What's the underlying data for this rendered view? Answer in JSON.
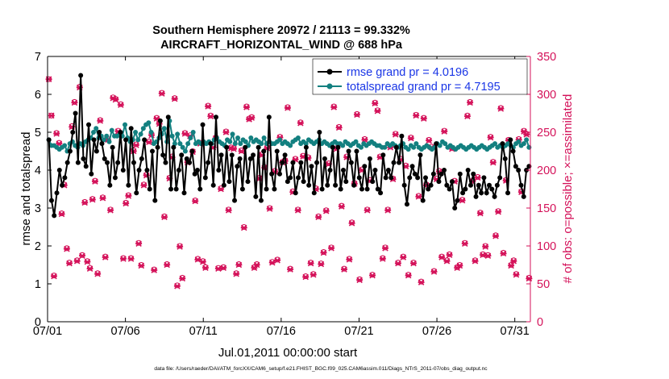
{
  "chart_data": {
    "type": "line",
    "title": "Southern Hemisphere 20972 / 21113 = 99.332%",
    "subtitle": "AIRCRAFT_HORIZONTAL_WIND @ 688 hPa",
    "xlabel": "Jul.01,2011 00:00:00 start",
    "ylabel_left": "rmse and totalspread",
    "ylabel_right": "# of obs: o=possible; ×=assimilated",
    "footnote": "data file: /Users/raeder/DAI/ATM_forcXX/CAM6_setup/f.e21.FHIST_BGC.f09_025.CAM6assim.011/Diags_NTrS_2011-07/obs_diag_output.nc",
    "x_ticks": [
      "07/01",
      "07/06",
      "07/11",
      "07/16",
      "07/21",
      "07/26",
      "07/31"
    ],
    "x_tick_days": [
      1,
      6,
      11,
      16,
      21,
      26,
      31
    ],
    "xlim_days": [
      1,
      32
    ],
    "ylim_left": [
      0,
      7
    ],
    "ylim_right": [
      0,
      350
    ],
    "y_ticks_left": [
      "0",
      "1",
      "2",
      "3",
      "4",
      "5",
      "6",
      "7"
    ],
    "y_ticks_right": [
      "0",
      "50",
      "100",
      "150",
      "200",
      "250",
      "300",
      "350"
    ],
    "left_color": "#000000",
    "totalspread_color": "#138080",
    "right_color": "#d41159",
    "legend_text_color": "#1a36e6",
    "legend_position": "top-right",
    "legend": [
      "rmse grand pr = 4.0196",
      "totalspread grand pr = 4.7195"
    ],
    "series": [
      {
        "name": "rmse",
        "values": [
          4.8,
          3.2,
          2.8,
          3.4,
          4.0,
          3.6,
          3.8,
          4.2,
          4.5,
          5.0,
          5.5,
          4.2,
          6.5,
          4.3,
          4.1,
          5.2,
          3.9,
          4.8,
          4.5,
          5.0,
          4.7,
          4.3,
          4.2,
          3.6,
          4.6,
          3.8,
          4.2,
          5.0,
          4.0,
          4.8,
          3.6,
          5.1,
          4.2,
          3.4,
          4.0,
          4.3,
          4.8,
          4.0,
          3.5,
          4.5,
          3.2,
          4.6,
          5.3,
          4.4,
          4.2,
          5.4,
          3.5,
          4.6,
          3.5,
          4.0,
          4.4,
          3.4,
          4.3,
          4.2,
          4.5,
          3.9,
          4.0,
          3.5,
          5.2,
          3.8,
          4.2,
          4.7,
          3.6,
          5.4,
          4.0,
          4.4,
          3.6,
          4.6,
          3.7,
          4.4,
          3.2,
          4.1,
          4.3,
          3.5,
          4.6,
          3.7,
          4.3,
          4.4,
          3.3,
          4.6,
          3.2,
          4.5,
          3.5,
          5.4,
          3.9,
          3.5,
          4.5,
          3.9,
          4.2,
          4.4,
          3.7,
          3.8,
          4.2,
          3.4,
          3.8,
          4.2,
          3.7,
          4.6,
          3.6,
          4.1,
          3.4,
          4.2,
          5.0,
          3.5,
          4.3,
          3.6,
          4.0,
          4.6,
          3.6,
          4.6,
          3.5,
          4.0,
          3.7,
          4.5,
          4.2,
          3.6,
          4.5,
          3.8,
          3.5,
          4.1,
          3.5,
          4.3,
          3.7,
          4.0,
          3.5,
          3.4,
          4.4,
          3.8,
          4.0,
          3.8,
          4.2,
          4.6,
          4.2,
          4.9,
          3.6,
          3.1,
          3.8,
          4.1,
          3.9,
          3.8,
          4.4,
          3.2,
          3.8,
          3.5,
          3.6,
          3.9,
          4.7,
          3.7,
          3.9,
          4.0,
          3.6,
          3.5,
          3.7,
          3.0,
          3.2,
          3.9,
          3.4,
          3.5,
          4.0,
          3.6,
          3.9,
          3.3,
          3.6,
          3.4,
          3.8,
          3.4,
          3.6,
          3.5,
          3.3,
          3.6,
          3.8,
          4.7,
          4.3,
          3.4,
          4.8,
          4.5,
          4.1,
          4.0,
          3.6,
          3.3,
          4.0,
          4.1
        ]
      },
      {
        "name": "totalspread",
        "values": [
          4.8,
          4.65,
          4.65,
          4.6,
          4.55,
          4.6,
          4.65,
          4.5,
          4.7,
          4.75,
          4.65,
          4.6,
          4.7,
          4.65,
          4.75,
          4.8,
          4.85,
          5.0,
          5.1,
          4.85,
          4.9,
          4.8,
          4.9,
          4.75,
          5.05,
          4.9,
          4.9,
          4.95,
          4.9,
          5.2,
          4.85,
          4.75,
          4.8,
          5.0,
          4.8,
          4.95,
          5.1,
          5.2,
          5.25,
          5.0,
          4.7,
          4.75,
          4.85,
          4.95,
          5.1,
          4.75,
          5.3,
          4.9,
          4.7,
          4.95,
          4.7,
          4.6,
          4.5,
          4.7,
          4.85,
          5.0,
          4.7,
          4.75,
          4.7,
          4.75,
          4.7,
          4.75,
          4.7,
          4.8,
          4.85,
          4.75,
          4.7,
          4.65,
          4.8,
          4.75,
          4.95,
          4.7,
          4.85,
          4.7,
          4.8,
          4.75,
          4.65,
          4.85,
          4.75,
          4.8,
          4.75,
          4.7,
          4.85,
          4.7,
          4.75,
          4.7,
          4.7,
          4.75,
          4.8,
          4.7,
          4.75,
          4.7,
          4.65,
          4.75,
          4.8,
          4.85,
          4.7,
          4.75,
          4.7,
          4.8,
          4.75,
          4.7,
          4.75,
          4.8,
          4.7,
          4.75,
          4.7,
          4.65,
          4.7,
          4.75,
          4.7,
          4.7,
          4.65,
          4.75,
          4.7,
          4.65,
          4.7,
          4.75,
          4.65,
          4.6,
          4.7,
          4.65,
          4.7,
          4.75,
          4.7,
          4.65,
          4.65,
          4.6,
          4.6,
          4.7,
          4.65,
          4.7,
          4.65,
          4.6,
          4.65,
          4.7,
          4.6,
          4.55,
          4.65,
          4.6,
          4.7,
          4.6,
          4.55,
          4.6,
          4.65,
          4.6,
          4.55,
          4.6,
          4.7,
          4.65,
          4.75,
          4.7,
          4.6,
          4.65,
          4.6,
          4.55,
          4.6,
          4.65,
          4.6,
          4.55,
          4.6,
          4.65,
          4.6,
          4.55,
          4.6,
          4.65,
          4.6,
          4.55,
          4.6,
          4.65,
          4.7,
          4.6,
          4.65,
          4.6,
          4.65,
          4.7,
          4.65,
          4.6,
          4.7,
          4.75,
          4.65,
          4.7,
          4.8,
          4.6
        ]
      }
    ],
    "obs_possible": [
      320,
      272,
      61,
      249,
      236,
      143,
      181,
      97,
      78,
      258,
      290,
      81,
      310,
      88,
      158,
      80,
      71,
      162,
      186,
      64,
      266,
      164,
      86,
      241,
      148,
      296,
      294,
      252,
      287,
      84,
      157,
      167,
      84,
      226,
      234,
      104,
      75,
      181,
      194,
      238,
      247,
      69,
      269,
      262,
      302,
      139,
      76,
      190,
      218,
      295,
      48,
      100,
      58,
      249,
      211,
      246,
      225,
      160,
      83,
      236,
      80,
      72,
      285,
      272,
      231,
      243,
      71,
      176,
      72,
      251,
      148,
      230,
      229,
      64,
      76,
      226,
      125,
      284,
      268,
      270,
      72,
      76,
      190,
      221,
      204,
      230,
      150,
      79,
      199,
      82,
      244,
      211,
      213,
      283,
      70,
      172,
      215,
      148,
      263,
      219,
      60,
      217,
      78,
      63,
      176,
      139,
      77,
      92,
      147,
      209,
      98,
      284,
      229,
      257,
      153,
      70,
      218,
      83,
      131,
      183,
      274,
      56,
      201,
      241,
      148,
      187,
      62,
      289,
      279,
      218,
      84,
      98,
      148,
      231,
      189,
      248,
      78,
      215,
      86,
      206,
      62,
      243,
      78,
      273,
      166,
      53,
      269,
      181,
      240,
      231,
      67,
      189,
      199,
      86,
      252,
      81,
      89,
      229,
      186,
      72,
      75,
      161,
      104,
      272,
      290,
      186,
      81,
      191,
      144,
      89,
      100,
      88,
      244,
      211,
      114,
      146,
      282,
      91,
      187,
      240,
      75,
      81,
      63,
      241,
      172,
      252,
      248,
      58
    ],
    "obs_assimilated": [
      320,
      272,
      60,
      248,
      235,
      142,
      180,
      96,
      77,
      257,
      289,
      80,
      309,
      87,
      157,
      79,
      70,
      161,
      185,
      63,
      265,
      163,
      85,
      240,
      147,
      295,
      293,
      251,
      286,
      83,
      156,
      166,
      83,
      225,
      233,
      103,
      74,
      180,
      193,
      237,
      246,
      68,
      268,
      261,
      301,
      138,
      75,
      189,
      217,
      294,
      47,
      99,
      57,
      248,
      210,
      245,
      224,
      159,
      82,
      235,
      79,
      71,
      284,
      271,
      230,
      242,
      70,
      175,
      71,
      250,
      147,
      229,
      228,
      63,
      75,
      225,
      124,
      283,
      267,
      269,
      71,
      75,
      189,
      220,
      203,
      229,
      149,
      78,
      198,
      81,
      243,
      210,
      212,
      282,
      69,
      171,
      214,
      147,
      262,
      218,
      59,
      216,
      77,
      62,
      175,
      138,
      76,
      91,
      146,
      208,
      97,
      283,
      228,
      256,
      152,
      69,
      217,
      82,
      130,
      182,
      273,
      55,
      200,
      240,
      147,
      186,
      61,
      288,
      278,
      217,
      83,
      97,
      147,
      230,
      188,
      247,
      77,
      214,
      85,
      205,
      61,
      242,
      77,
      272,
      165,
      52,
      268,
      180,
      239,
      230,
      66,
      188,
      198,
      85,
      251,
      80,
      88,
      228,
      185,
      71,
      74,
      160,
      103,
      271,
      289,
      185,
      80,
      190,
      143,
      88,
      99,
      87,
      243,
      210,
      113,
      145,
      281,
      90,
      186,
      239,
      74,
      80,
      62,
      240,
      171,
      251,
      247,
      57
    ]
  }
}
